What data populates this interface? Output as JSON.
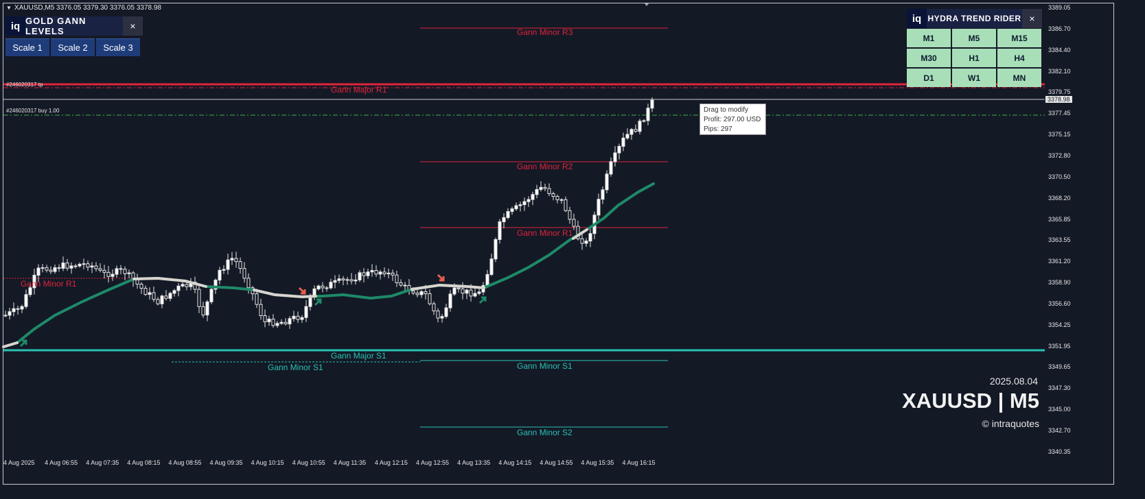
{
  "header": {
    "text": "XAUUSD,M5  3376.05 3379.30 3376.05 3378.98"
  },
  "gann_panel": {
    "logo": "iq",
    "title": "GOLD GANN LEVELS",
    "close": "×",
    "scales": [
      "Scale 1",
      "Scale 2",
      "Scale 3"
    ]
  },
  "hydra_panel": {
    "logo": "iq",
    "title": "HYDRA TREND RIDER",
    "close": "×",
    "timeframes": [
      "M1",
      "M5",
      "M15",
      "M30",
      "H1",
      "H4",
      "D1",
      "W1",
      "MN"
    ]
  },
  "tooltip": {
    "line1": "Drag to modify",
    "line2": "Profit: 297.00 USD",
    "line3": "Pips: 297"
  },
  "orders": {
    "tp_label": "#246020317 tp",
    "buy_label": "#246020317 buy 1.00"
  },
  "levels": {
    "minor_r3": "Gann Minor R3",
    "major_r1": "Gann Major R1",
    "minor_r2": "Gann Minor R2",
    "minor_r1_right": "Gann Minor R1",
    "minor_r1_left": "Gann Minor R1",
    "major_s1": "Gann Major S1",
    "minor_s1_left": "Gann Minor S1",
    "minor_s1_right": "Gann Minor S1",
    "minor_s2": "Gann Minor S2"
  },
  "watermark": {
    "date": "2025.08.04",
    "symbol": "XAUUSD | M5",
    "copyright": "© intraquotes"
  },
  "price_axis": {
    "ticks": [
      "3389.05",
      "3386.70",
      "3384.40",
      "3382.10",
      "3379.75",
      "3377.45",
      "3375.15",
      "3372.80",
      "3370.50",
      "3368.20",
      "3365.85",
      "3363.55",
      "3361.20",
      "3358.90",
      "3356.60",
      "3354.25",
      "3351.95",
      "3349.65",
      "3347.30",
      "3345.00",
      "3342.70",
      "3340.35"
    ],
    "current_price": "3378.98"
  },
  "time_axis": {
    "ticks": [
      "4 Aug 2025",
      "4 Aug 06:55",
      "4 Aug 07:35",
      "4 Aug 08:15",
      "4 Aug 08:55",
      "4 Aug 09:35",
      "4 Aug 10:15",
      "4 Aug 10:55",
      "4 Aug 11:35",
      "4 Aug 12:15",
      "4 Aug 12:55",
      "4 Aug 13:35",
      "4 Aug 14:15",
      "4 Aug 14:55",
      "4 Aug 15:35",
      "4 Aug 16:15"
    ]
  },
  "colors": {
    "background": "#131722",
    "resistance": "#e0243a",
    "support": "#28c2b4",
    "trend_line": "#1e8a68",
    "candle": "#e6e6e6",
    "buy_line": "#3cb34a"
  }
}
